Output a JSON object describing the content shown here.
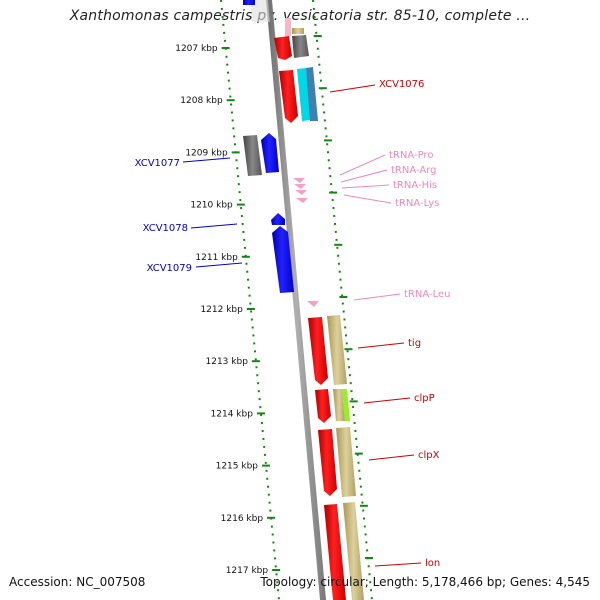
{
  "title": "Xanthomonas campestris pv. vesicatoria str. 85-10, complete ...",
  "footer": {
    "accession": "Accession: NC_007508",
    "summary": "Topology: circular; Length: 5,178,466 bp; Genes: 4,545"
  },
  "colors": {
    "backbone": "#888888",
    "tick_green": "#118811",
    "gene_red": "#ee0000",
    "gene_blue": "#0000ee",
    "gene_gray": "#666666",
    "gene_khaki": "#c8b878",
    "gene_cyan": "#00d8e8",
    "gene_steel": "#4080b0",
    "gene_lime": "#99ee22",
    "trna_pink": "#f4a0c8",
    "label_red": "#cc0000",
    "label_blue": "#0000cc",
    "label_pink": "#ee88bb"
  },
  "ticks": [
    "1207 kbp",
    "1208 kbp",
    "1209 kbp",
    "1210 kbp",
    "1211 kbp",
    "1212 kbp",
    "1213 kbp",
    "1214 kbp",
    "1215 kbp",
    "1216 kbp",
    "1217 kbp"
  ],
  "labels": {
    "xcv1076": "XCV1076",
    "xcv1077": "XCV1077",
    "xcv1078": "XCV1078",
    "xcv1079": "XCV1079",
    "trna_pro": "tRNA-Pro",
    "trna_arg": "tRNA-Arg",
    "trna_his": "tRNA-His",
    "trna_lys": "tRNA-Lys",
    "trna_leu": "tRNA-Leu",
    "tig": "tig",
    "clpp": "clpP",
    "clpx": "clpX",
    "lon": "lon"
  }
}
